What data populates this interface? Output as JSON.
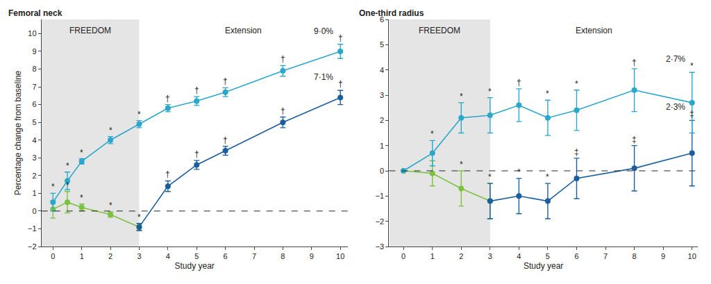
{
  "chart_data": [
    {
      "type": "line",
      "title": "Femoral neck",
      "x_label": "Study year",
      "y_label": "Percentage change from baseline",
      "xlim": [
        -0.4,
        10.25
      ],
      "xticks": [
        0,
        1,
        2,
        3,
        4,
        5,
        6,
        7,
        8,
        9,
        10
      ],
      "ylim": [
        -2,
        10.8
      ],
      "yticks": [
        {
          "value": -2,
          "label": "−2"
        },
        {
          "value": -1,
          "label": "−1"
        },
        0,
        1,
        2,
        3,
        4,
        5,
        6,
        7,
        8,
        9,
        10
      ],
      "grid": false,
      "reference_lines": [
        0
      ],
      "regions": [
        {
          "label": "FREEDOM",
          "x": [
            -0.4,
            3
          ],
          "color": "#e5e5e5"
        },
        {
          "label": "Extension",
          "x": [
            3,
            10.25
          ]
        }
      ],
      "series": [
        {
          "color": "#7dc142",
          "x": [
            0,
            0.5,
            1,
            2,
            3
          ],
          "values": [
            0.1,
            0.5,
            0.2,
            -0.2,
            -0.9
          ],
          "errors": [
            0.5,
            0.6,
            0.2,
            0.15,
            0.2
          ],
          "significance": [
            null,
            "*",
            "*",
            "*",
            "*"
          ]
        },
        {
          "color": "#1b5e9e",
          "x": [
            3,
            4,
            5,
            6,
            8,
            10
          ],
          "values": [
            -0.9,
            1.4,
            2.6,
            3.4,
            5.0,
            6.4
          ],
          "errors": [
            0.2,
            0.3,
            0.25,
            0.25,
            0.3,
            0.4
          ],
          "significance": [
            null,
            "†",
            "†",
            "†",
            "†",
            "†"
          ],
          "end_label": "7·1%"
        },
        {
          "color": "#2aa7cb",
          "x": [
            0,
            0.5,
            1,
            2,
            3,
            4,
            5,
            6,
            8,
            10
          ],
          "values": [
            0.5,
            1.7,
            2.8,
            4.0,
            4.9,
            5.8,
            6.2,
            6.7,
            7.9,
            9.0
          ],
          "errors": [
            0.5,
            0.5,
            0.15,
            0.2,
            0.2,
            0.2,
            0.25,
            0.25,
            0.3,
            0.4
          ],
          "significance": [
            "*",
            "*",
            "*",
            "*",
            "*",
            "†",
            "†",
            "†",
            "†",
            "†"
          ],
          "end_label": "9·0%"
        }
      ]
    },
    {
      "type": "line",
      "title": "One-third radius",
      "x_label": "Study year",
      "xlim": [
        -0.5,
        10.2
      ],
      "xticks": [
        0,
        1,
        2,
        3,
        4,
        5,
        6,
        7,
        8,
        9,
        10
      ],
      "ylim": [
        -3,
        6
      ],
      "yticks": [
        {
          "value": -3,
          "label": "−3"
        },
        {
          "value": -2,
          "label": "−2"
        },
        {
          "value": -1,
          "label": "−1"
        },
        0,
        1,
        2,
        3,
        4,
        5,
        6
      ],
      "grid": false,
      "reference_lines": [
        0
      ],
      "regions": [
        {
          "label": "FREEDOM",
          "x": [
            -0.5,
            3
          ],
          "color": "#e5e5e5"
        },
        {
          "label": "Extension",
          "x": [
            3,
            10.2
          ]
        }
      ],
      "series": [
        {
          "color": "#7dc142",
          "x": [
            0,
            1,
            2,
            3
          ],
          "values": [
            0,
            -0.1,
            -0.7,
            -1.2
          ],
          "errors": [
            0,
            0.5,
            0.7,
            0.7
          ],
          "significance": [
            null,
            null,
            "*",
            "*"
          ]
        },
        {
          "color": "#1b5e9e",
          "x": [
            3,
            4,
            5,
            6,
            8,
            10
          ],
          "values": [
            -1.2,
            -1.0,
            -1.2,
            -0.3,
            0.1,
            0.7
          ],
          "errors": [
            0.7,
            0.7,
            0.7,
            0.8,
            0.9,
            1.3
          ],
          "significance": [
            null,
            "*",
            "*",
            "‡",
            "‡",
            "‡"
          ],
          "end_label": "2·3%"
        },
        {
          "color": "#2aa7cb",
          "x": [
            0,
            1,
            2,
            3,
            4,
            5,
            6,
            8,
            10
          ],
          "values": [
            0,
            0.7,
            2.1,
            2.2,
            2.6,
            2.1,
            2.4,
            3.2,
            2.7
          ],
          "errors": [
            0,
            0.5,
            0.6,
            0.7,
            0.65,
            0.7,
            0.8,
            0.85,
            1.2
          ],
          "significance": [
            null,
            "*",
            "*",
            "*",
            "†",
            "*",
            "*",
            "†",
            "*"
          ],
          "end_label": "2·7%"
        }
      ]
    }
  ]
}
